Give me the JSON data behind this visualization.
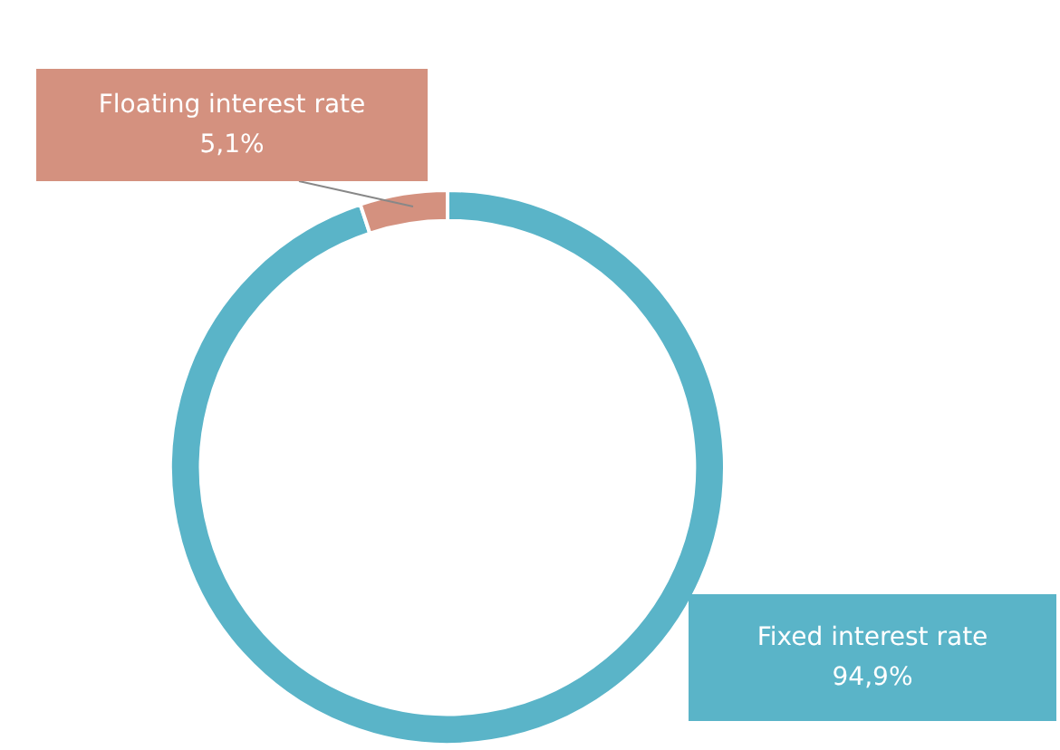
{
  "chart_data": {
    "type": "donut",
    "categories": [
      "Fixed interest rate",
      "Floating interest rate"
    ],
    "values": [
      94.9,
      5.1
    ],
    "colors": [
      "#5ab4c8",
      "#d4917f"
    ],
    "value_labels": [
      "94,9%",
      "5,1%"
    ]
  }
}
